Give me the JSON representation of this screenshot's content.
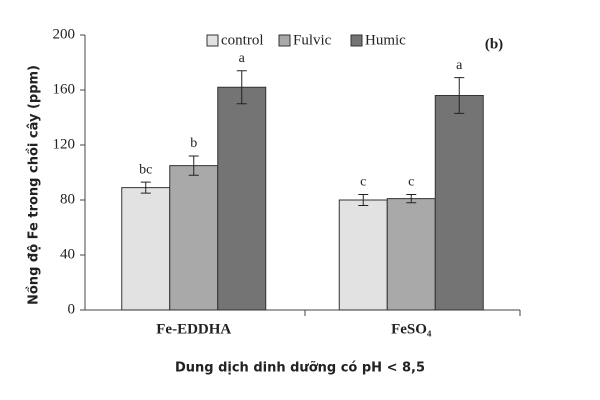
{
  "chart_data": {
    "type": "bar",
    "panel_label": "(b)",
    "x_label": "Dung dịch dinh dưỡng có pH < 8,5",
    "y_label": "Nồng độ Fe trong chồi cây (ppm)",
    "categories": [
      "Fe-EDDHA",
      "FeSO₄"
    ],
    "series": [
      {
        "name": "control",
        "color": "#e2e2e2",
        "values": [
          89,
          80
        ],
        "errors": [
          4,
          4
        ],
        "letters": [
          "bc",
          "c"
        ]
      },
      {
        "name": "Fulvic",
        "color": "#a9a9a9",
        "values": [
          105,
          81
        ],
        "errors": [
          7,
          3
        ],
        "letters": [
          "b",
          "c"
        ]
      },
      {
        "name": "Humic",
        "color": "#747474",
        "values": [
          162,
          156
        ],
        "errors": [
          12,
          13
        ],
        "letters": [
          "a",
          "a"
        ]
      }
    ],
    "ylim": [
      0,
      200
    ],
    "yticks": [
      0,
      40,
      80,
      120,
      160,
      200
    ],
    "grid": false
  }
}
